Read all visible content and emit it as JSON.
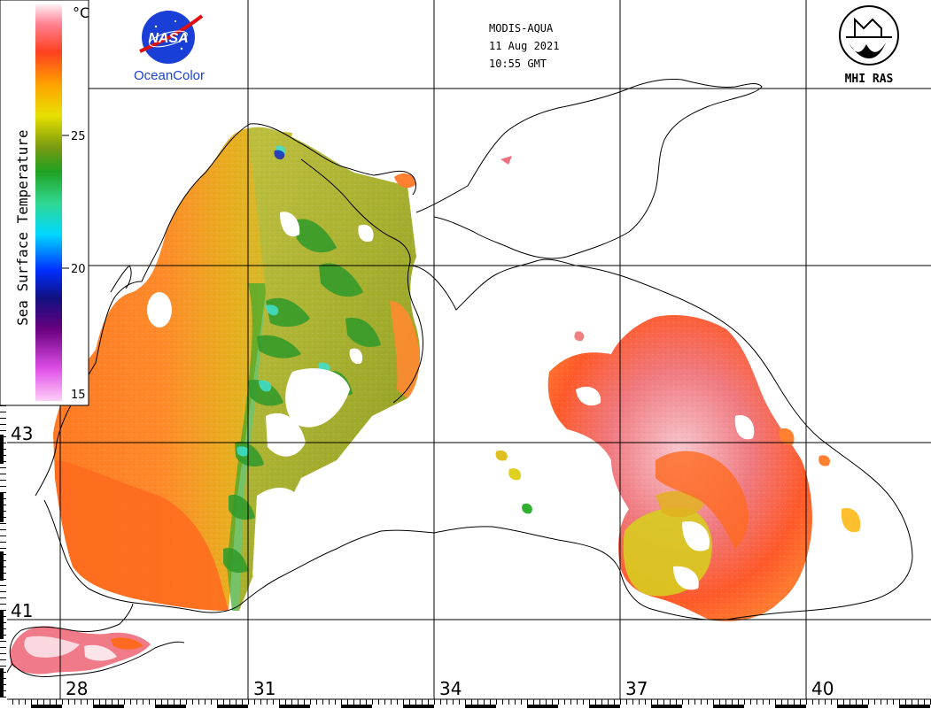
{
  "header": {
    "sensor": "MODIS-AQUA",
    "date": "11 Aug 2021",
    "time": "10:55 GMT"
  },
  "logos": {
    "nasa_text": "NASA",
    "oceancolor_text": "OceanColor",
    "mhi_text": "MHI RAS"
  },
  "legend": {
    "title": "Sea Surface Temperature",
    "unit": "°C",
    "ticks": [
      "25",
      "20",
      "15"
    ],
    "range": [
      15,
      29
    ],
    "colors": [
      "#ffd0f0",
      "#d040e0",
      "#5a0070",
      "#0010c0",
      "#00c0ff",
      "#30d0a0",
      "#20a020",
      "#c0c800",
      "#ffa000",
      "#ff5020",
      "#ff8080",
      "#ffe0e8"
    ]
  },
  "axes": {
    "latitudes": [
      "43",
      "41"
    ],
    "longitudes": [
      "28",
      "31",
      "34",
      "37",
      "40"
    ]
  },
  "colors": {
    "warm_orange": "#ff7a24",
    "yellow_olive": "#c8c830",
    "olive_green": "#8a9a20",
    "pink_hot": "#f07080",
    "cool_cyan": "#40e0d0",
    "coastline": "#000000",
    "land": "#ffffff",
    "nasa_blue": "#1a3fd6",
    "nasa_red": "#e01010"
  }
}
